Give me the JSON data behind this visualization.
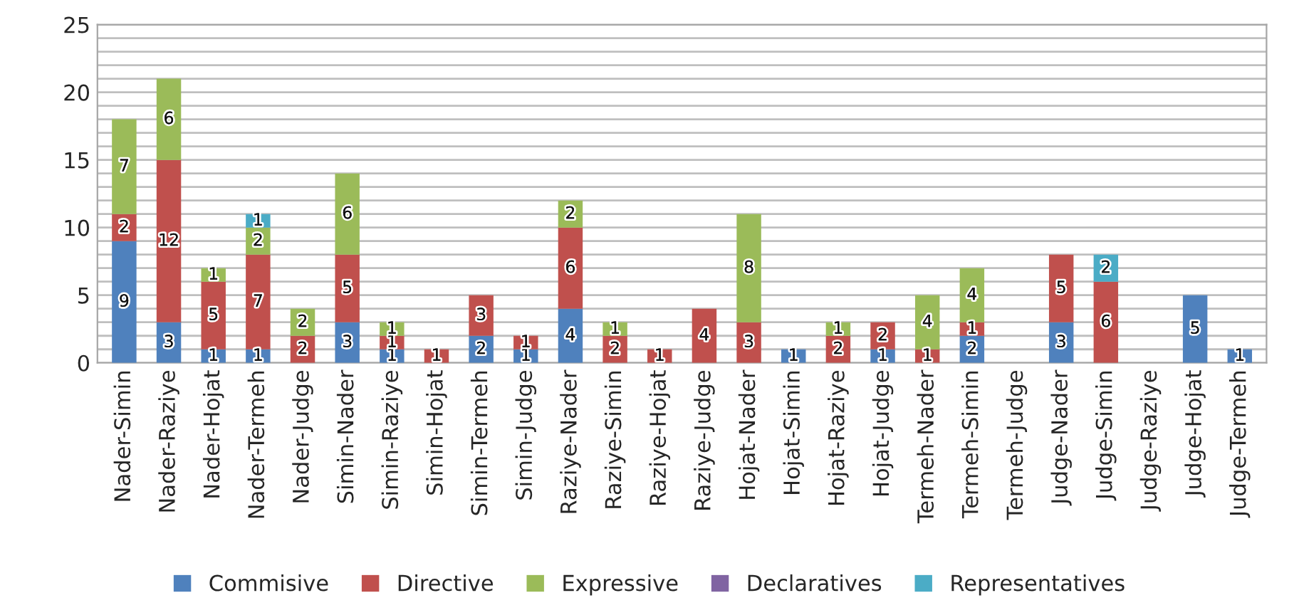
{
  "chart_data": {
    "type": "bar",
    "stacked": true,
    "categories": [
      "Nader-Simin",
      "Nader-Raziye",
      "Nader-Hojat",
      "Nader-Termeh",
      "Nader-Judge",
      "Simin-Nader",
      "Simin-Raziye",
      "Simin-Hojat",
      "Simin-Termeh",
      "Simin-Judge",
      "Raziye-Nader",
      "Raziye-Simin",
      "Raziye-Hojat",
      "Raziye-Judge",
      "Hojat-Nader",
      "Hojat-Simin",
      "Hojat-Raziye",
      "Hojat-Judge",
      "Termeh-Nader",
      "Termeh-Simin",
      "Termeh-Judge",
      "Judge-Nader",
      "Judge-Simin",
      "Judge-Raziye",
      "Judge-Hojat",
      "Judge-Termeh"
    ],
    "series": [
      {
        "name": "Commisive",
        "color": "#4f81bd",
        "values": [
          9,
          3,
          1,
          1,
          0,
          3,
          1,
          0,
          2,
          1,
          4,
          0,
          0,
          0,
          0,
          1,
          0,
          1,
          0,
          2,
          0,
          3,
          0,
          0,
          5,
          1
        ],
        "value_labels": [
          "9",
          "3",
          "1",
          "1",
          null,
          "3",
          "1",
          null,
          "2",
          "1",
          "4",
          null,
          null,
          null,
          null,
          "1",
          null,
          "1",
          null,
          "2",
          null,
          "3",
          null,
          null,
          "5",
          "1"
        ]
      },
      {
        "name": "Directive",
        "color": "#c0504d",
        "values": [
          2,
          12,
          5,
          7,
          2,
          5,
          1,
          1,
          3,
          1,
          6,
          2,
          1,
          4,
          3,
          0,
          2,
          2,
          1,
          1,
          0,
          5,
          6,
          0,
          0,
          0
        ],
        "value_labels": [
          "2",
          "12",
          "5",
          "7",
          "2",
          "5",
          "1",
          "1",
          "3",
          "1",
          "6",
          "2",
          "1",
          "4",
          "3",
          null,
          "2",
          "2",
          "1",
          "1",
          null,
          "5",
          "6",
          null,
          null,
          null
        ]
      },
      {
        "name": "Expressive",
        "color": "#9bbb59",
        "values": [
          7,
          6,
          1,
          2,
          2,
          6,
          1,
          0,
          0,
          0,
          2,
          1,
          0,
          0,
          8,
          0,
          1,
          0,
          4,
          4,
          0,
          0,
          0,
          0,
          0,
          0
        ],
        "value_labels": [
          "7",
          "6",
          "1",
          "2",
          "2",
          "6",
          "1",
          null,
          null,
          null,
          "2",
          "1",
          null,
          null,
          "8",
          null,
          "1",
          null,
          "4",
          "4",
          null,
          null,
          null,
          null,
          null,
          null
        ]
      },
      {
        "name": "Declaratives",
        "color": "#8064a2",
        "values": [
          0,
          0,
          0,
          0,
          0,
          0,
          0,
          0,
          0,
          0,
          0,
          0,
          0,
          0,
          0,
          0,
          0,
          0,
          0,
          0,
          0,
          0,
          0,
          0,
          0,
          0
        ]
      },
      {
        "name": "Representatives",
        "color": "#4bacc6",
        "values": [
          0,
          0,
          0,
          1,
          0,
          0,
          0,
          0,
          0,
          0,
          0,
          0,
          0,
          0,
          0,
          0,
          0,
          0,
          0,
          0,
          0,
          0,
          2,
          0,
          0,
          0
        ],
        "value_labels": [
          null,
          null,
          null,
          "1",
          null,
          null,
          null,
          null,
          null,
          null,
          null,
          null,
          null,
          null,
          null,
          null,
          null,
          null,
          null,
          null,
          null,
          null,
          "2",
          null,
          null,
          null
        ]
      }
    ],
    "ylim": [
      0,
      25
    ],
    "yticks": [
      0,
      {
        "value": 1,
        "label": null
      },
      {
        "value": 2,
        "label": null
      },
      {
        "value": 3,
        "label": null
      },
      {
        "value": 4,
        "label": null
      },
      5,
      {
        "value": 6,
        "label": null
      },
      {
        "value": 7,
        "label": null
      },
      {
        "value": 8,
        "label": null
      },
      {
        "value": 9,
        "label": null
      },
      10,
      {
        "value": 11,
        "label": null
      },
      {
        "value": 12,
        "label": null
      },
      {
        "value": 13,
        "label": null
      },
      {
        "value": 14,
        "label": null
      },
      15,
      {
        "value": 16,
        "label": null
      },
      {
        "value": 17,
        "label": null
      },
      {
        "value": 18,
        "label": null
      },
      {
        "value": 19,
        "label": null
      },
      20,
      {
        "value": 21,
        "label": null
      },
      {
        "value": 22,
        "label": null
      },
      {
        "value": 23,
        "label": null
      },
      {
        "value": 24,
        "label": null
      },
      25
    ],
    "grid": "y",
    "legend": "bottom"
  }
}
